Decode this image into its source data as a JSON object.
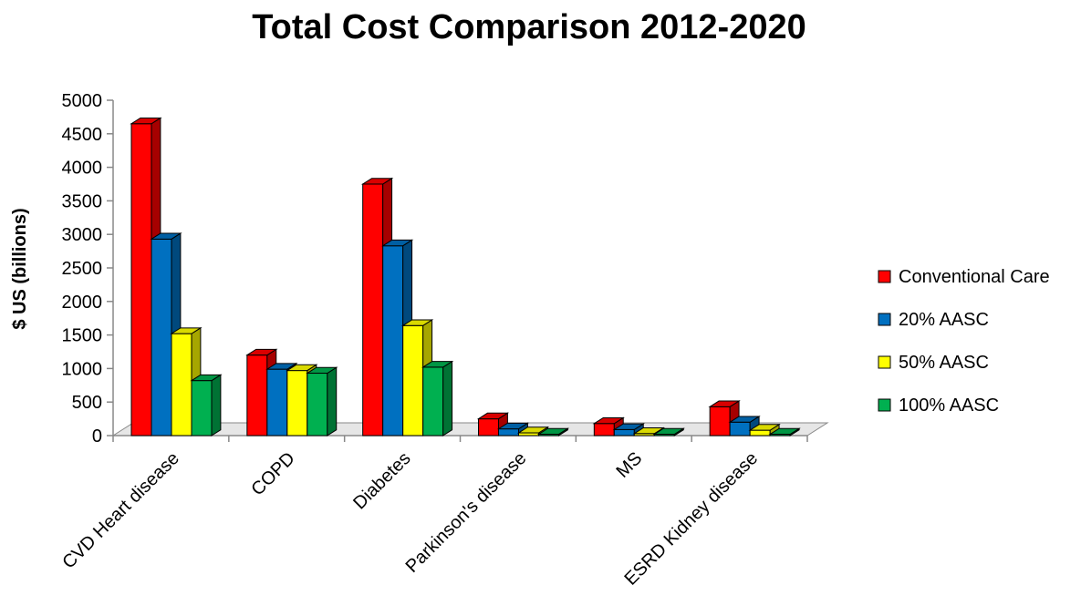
{
  "chart_data": {
    "type": "bar",
    "title": "Total Cost Comparison 2012-2020",
    "xlabel": "",
    "ylabel": "$ US (billions)",
    "ylim": [
      0,
      5000
    ],
    "yticks": [
      "0",
      "500",
      "1000",
      "1500",
      "2000",
      "2500",
      "3000",
      "3500",
      "4000",
      "4500",
      "5000"
    ],
    "categories": [
      "CVD Heart disease",
      "COPD",
      "Diabetes",
      "Parkinson's disease",
      "MS",
      "ESRD Kidney disease"
    ],
    "series": [
      {
        "name": "Conventional Care",
        "color": "#ff0000",
        "values": [
          4650,
          1200,
          3750,
          250,
          180,
          430
        ]
      },
      {
        "name": "20% AASC",
        "color": "#0070c0",
        "values": [
          2930,
          990,
          2830,
          100,
          90,
          200
        ]
      },
      {
        "name": "50% AASC",
        "color": "#ffff00",
        "values": [
          1520,
          970,
          1640,
          40,
          30,
          80
        ]
      },
      {
        "name": "100% AASC",
        "color": "#00b050",
        "values": [
          820,
          930,
          1020,
          20,
          20,
          20
        ]
      }
    ],
    "legend_position": "right",
    "style": "3d-clustered-bar",
    "grid": false
  }
}
